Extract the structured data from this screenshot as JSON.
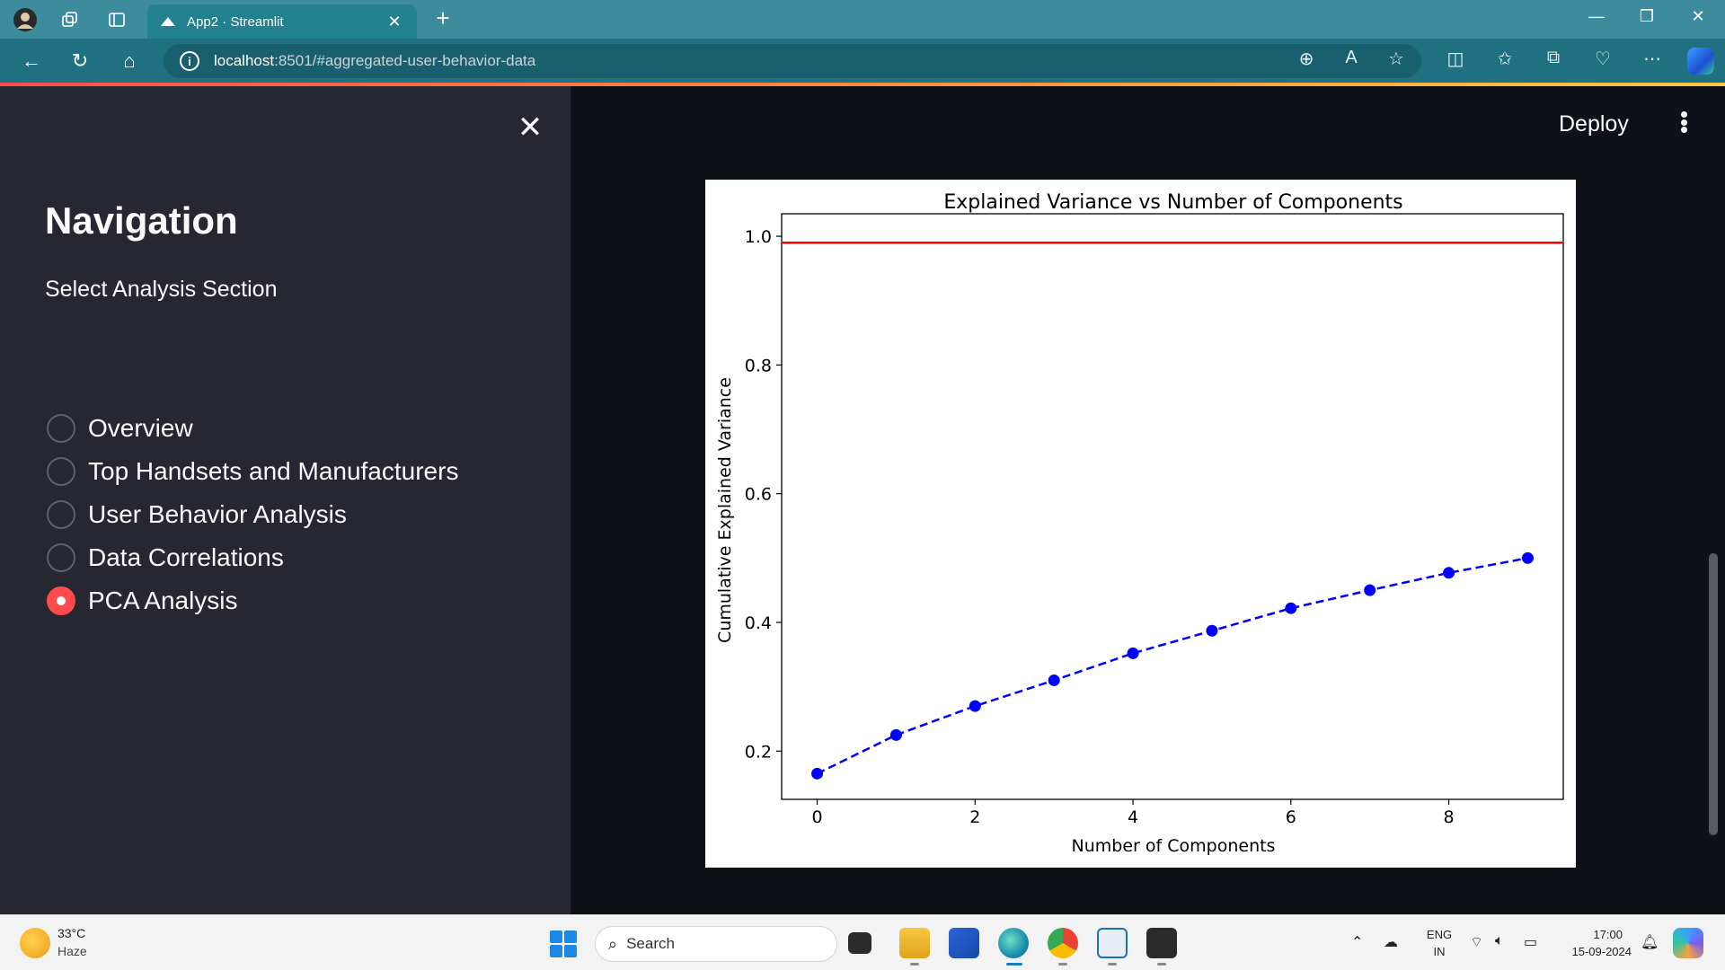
{
  "browser": {
    "tab_title": "App2 · Streamlit",
    "url_host": "localhost",
    "url_path": ":8501/#aggregated-user-behavior-data"
  },
  "sidebar": {
    "title": "Navigation",
    "radio_label": "Select Analysis Section",
    "options": [
      {
        "label": "Overview",
        "selected": false
      },
      {
        "label": "Top Handsets and Manufacturers",
        "selected": false
      },
      {
        "label": "User Behavior Analysis",
        "selected": false
      },
      {
        "label": "Data Correlations",
        "selected": false
      },
      {
        "label": "PCA Analysis",
        "selected": true
      }
    ]
  },
  "header": {
    "deploy_label": "Deploy"
  },
  "chart_data": {
    "type": "line",
    "title": "Explained Variance vs Number of Components",
    "xlabel": "Number of Components",
    "ylabel": "Cumulative Explained Variance",
    "xlim": [
      -0.45,
      9.45
    ],
    "ylim": [
      0.125,
      1.035
    ],
    "xticks": [
      0,
      2,
      4,
      6,
      8
    ],
    "yticks": [
      0.2,
      0.4,
      0.6,
      0.8,
      1.0
    ],
    "grid": false,
    "series": [
      {
        "x": [
          0,
          1,
          2,
          3,
          4,
          5,
          6,
          7,
          8,
          9
        ],
        "values": [
          0.165,
          0.225,
          0.27,
          0.31,
          0.352,
          0.387,
          0.422,
          0.45,
          0.477,
          0.5
        ],
        "color": "#0000ff",
        "style": "dashed",
        "marker": "circle"
      }
    ],
    "threshold": {
      "y": 0.99,
      "color": "#ff0000"
    }
  },
  "taskbar": {
    "weather_temp": "33°C",
    "weather_desc": "Haze",
    "search_placeholder": "Search",
    "lang_line1": "ENG",
    "lang_line2": "IN",
    "time": "17:00",
    "date": "15-09-2024"
  }
}
